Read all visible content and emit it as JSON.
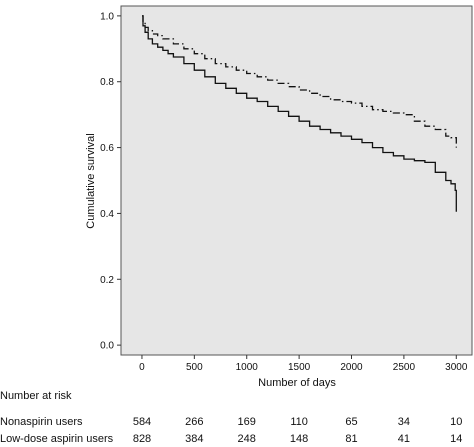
{
  "chart_data": {
    "type": "line",
    "xlabel": "Number of days",
    "ylabel": "Cumulative survival",
    "xlim": [
      -200,
      3150
    ],
    "ylim": [
      -0.03,
      1.03
    ],
    "x_ticks": [
      0,
      500,
      1000,
      1500,
      2000,
      2500,
      3000
    ],
    "y_ticks": [
      0.0,
      0.2,
      0.4,
      0.6,
      0.8,
      1.0
    ],
    "y_tick_labels": [
      "0.0",
      "0.2",
      "0.4",
      "0.6",
      "0.8",
      "1.0"
    ],
    "grid": false,
    "plot_background": "#e6e6e6",
    "series": [
      {
        "line_style": "solid",
        "x": [
          0,
          10,
          30,
          60,
          100,
          150,
          200,
          250,
          300,
          400,
          500,
          600,
          700,
          800,
          900,
          1000,
          1100,
          1200,
          1300,
          1400,
          1500,
          1600,
          1700,
          1800,
          1900,
          2000,
          2100,
          2200,
          2300,
          2400,
          2500,
          2600,
          2700,
          2800,
          2900,
          2950,
          2990,
          3000
        ],
        "y": [
          1.0,
          0.97,
          0.95,
          0.93,
          0.915,
          0.905,
          0.895,
          0.885,
          0.875,
          0.855,
          0.835,
          0.815,
          0.795,
          0.78,
          0.765,
          0.75,
          0.74,
          0.725,
          0.71,
          0.695,
          0.68,
          0.665,
          0.655,
          0.645,
          0.635,
          0.625,
          0.615,
          0.6,
          0.585,
          0.575,
          0.565,
          0.56,
          0.555,
          0.525,
          0.5,
          0.49,
          0.47,
          0.405
        ]
      },
      {
        "line_style": "dashdot",
        "x": [
          0,
          10,
          30,
          60,
          100,
          150,
          200,
          300,
          400,
          500,
          600,
          700,
          800,
          900,
          1000,
          1100,
          1200,
          1300,
          1400,
          1500,
          1600,
          1700,
          1800,
          1900,
          2000,
          2100,
          2200,
          2300,
          2400,
          2500,
          2600,
          2700,
          2800,
          2900,
          2950,
          3000
        ],
        "y": [
          1.0,
          0.98,
          0.965,
          0.955,
          0.945,
          0.94,
          0.93,
          0.915,
          0.9,
          0.885,
          0.87,
          0.855,
          0.845,
          0.835,
          0.825,
          0.815,
          0.805,
          0.795,
          0.785,
          0.775,
          0.765,
          0.755,
          0.745,
          0.74,
          0.735,
          0.725,
          0.715,
          0.71,
          0.705,
          0.7,
          0.68,
          0.665,
          0.655,
          0.635,
          0.63,
          0.6
        ]
      }
    ]
  },
  "risk_table": {
    "title": "Number at risk",
    "rows": [
      {
        "label": "Nonaspirin users",
        "values": [
          "584",
          "266",
          "169",
          "110",
          "65",
          "34",
          "10"
        ]
      },
      {
        "label": "Low-dose aspirin users",
        "values": [
          "828",
          "384",
          "248",
          "148",
          "81",
          "41",
          "14"
        ]
      }
    ]
  }
}
